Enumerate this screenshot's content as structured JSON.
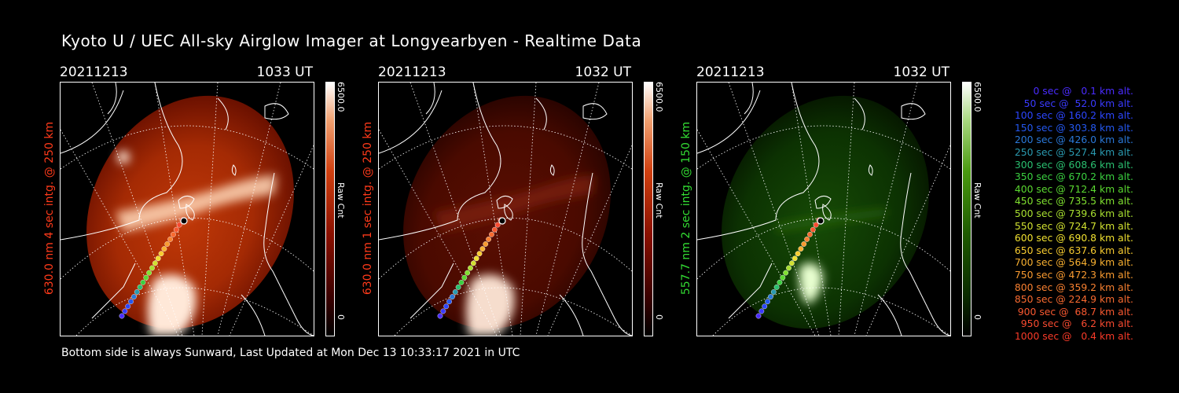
{
  "header": {
    "title": "Kyoto U / UEC All-sky Airglow Imager at Longyearbyen - Realtime Data"
  },
  "panels": [
    {
      "date": "20211213",
      "time": "1033 UT",
      "side_label": "630.0 nm 4 sec intg. @ 250 km",
      "label_color": "#ff3a1a",
      "colorbar_max": "6500.0",
      "colorbar_unit": "Raw Cnt",
      "colorbar_min": "0",
      "colormap": "red",
      "intensity": "bright"
    },
    {
      "date": "20211213",
      "time": "1032 UT",
      "side_label": "630.0 nm 1 sec intg. @ 250 km",
      "label_color": "#ff3a1a",
      "colorbar_max": "6500.0",
      "colorbar_unit": "Raw Cnt",
      "colorbar_min": "0",
      "colormap": "red",
      "intensity": "dim"
    },
    {
      "date": "20211213",
      "time": "1032 UT",
      "side_label": "557.7 nm 2 sec intg. @ 150 km",
      "label_color": "#33dd33",
      "colorbar_max": "6500.0",
      "colorbar_unit": "Raw Cnt",
      "colorbar_min": "0",
      "colormap": "green",
      "intensity": "dim"
    }
  ],
  "footer": {
    "text": "Bottom side is always Sunward, Last Updated at Mon Dec 13 10:33:17 2021 in UTC"
  },
  "trajectory_legend": [
    {
      "text": "0 sec @   0.1 km alt.",
      "color": "#4a2cff"
    },
    {
      "text": "50 sec @  52.0 km alt.",
      "color": "#3a3aff"
    },
    {
      "text": "100 sec @ 160.2 km alt.",
      "color": "#2c46ff"
    },
    {
      "text": "150 sec @ 303.8 km alt.",
      "color": "#2458f0"
    },
    {
      "text": "200 sec @ 426.0 km alt.",
      "color": "#2a78d8"
    },
    {
      "text": "250 sec @ 527.4 km alt.",
      "color": "#2a9ab0"
    },
    {
      "text": "300 sec @ 608.6 km alt.",
      "color": "#2ac070"
    },
    {
      "text": "350 sec @ 670.2 km alt.",
      "color": "#3ad040"
    },
    {
      "text": "400 sec @ 712.4 km alt.",
      "color": "#5ad830"
    },
    {
      "text": "450 sec @ 735.5 km alt.",
      "color": "#80e030"
    },
    {
      "text": "500 sec @ 739.6 km alt.",
      "color": "#a8e030"
    },
    {
      "text": "550 sec @ 724.7 km alt.",
      "color": "#d0e030"
    },
    {
      "text": "600 sec @ 690.8 km alt.",
      "color": "#f0e030"
    },
    {
      "text": "650 sec @ 637.6 km alt.",
      "color": "#f8cc30"
    },
    {
      "text": "700 sec @ 564.9 km alt.",
      "color": "#f8b030"
    },
    {
      "text": "750 sec @ 472.3 km alt.",
      "color": "#f89a30"
    },
    {
      "text": "800 sec @ 359.2 km alt.",
      "color": "#f88030"
    },
    {
      "text": "850 sec @ 224.9 km alt.",
      "color": "#f86a30"
    },
    {
      "text": "900 sec @  68.7 km alt.",
      "color": "#f85830"
    },
    {
      "text": "950 sec @   6.2 km alt.",
      "color": "#f84a30"
    },
    {
      "text": "1000 sec @   0.4 km alt.",
      "color": "#f83a28"
    }
  ]
}
